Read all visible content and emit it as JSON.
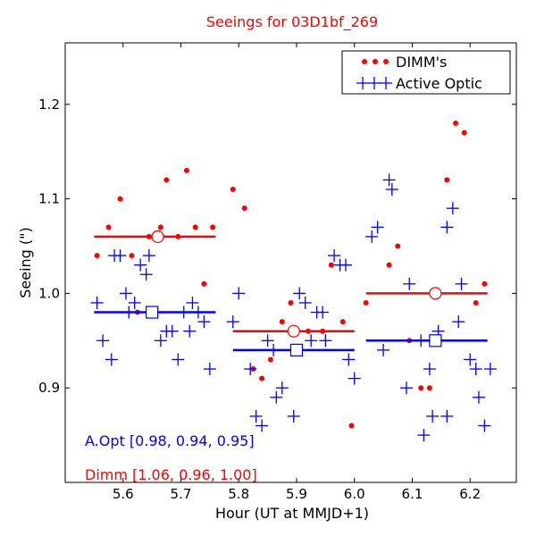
{
  "chart_data": {
    "type": "scatter",
    "title": "Seeings for 03D1bf_269",
    "xlabel": "Hour (UT at MMJD+1)",
    "ylabel": "Seeing (\")",
    "xlim": [
      5.5,
      6.28
    ],
    "ylim": [
      0.8,
      1.265
    ],
    "xticks": [
      5.6,
      5.7,
      5.8,
      5.9,
      6.0,
      6.1,
      6.2
    ],
    "xtick_labels": [
      "5.6",
      "5.7",
      "5.8",
      "5.9",
      "6.0",
      "6.1",
      "6.2"
    ],
    "yticks": [
      0.9,
      1.0,
      1.1,
      1.2
    ],
    "ytick_labels": [
      "0.9",
      "1.0",
      "1.1",
      "1.2"
    ],
    "grid": false,
    "legend_position": "top-right",
    "colors": {
      "dimm": "#ff0000",
      "aopt": "#0000ff"
    },
    "series": [
      {
        "name": "DIMM's",
        "key": "dimm",
        "marker": "dot",
        "points": [
          [
            5.555,
            1.04
          ],
          [
            5.575,
            1.07
          ],
          [
            5.595,
            1.1
          ],
          [
            5.615,
            1.04
          ],
          [
            5.625,
            0.98
          ],
          [
            5.645,
            1.06
          ],
          [
            5.665,
            1.07
          ],
          [
            5.675,
            1.12
          ],
          [
            5.695,
            1.06
          ],
          [
            5.71,
            1.13
          ],
          [
            5.725,
            1.07
          ],
          [
            5.74,
            1.01
          ],
          [
            5.755,
            1.07
          ],
          [
            5.79,
            1.11
          ],
          [
            5.81,
            1.09
          ],
          [
            5.825,
            0.92
          ],
          [
            5.84,
            0.91
          ],
          [
            5.855,
            0.93
          ],
          [
            5.875,
            0.97
          ],
          [
            5.89,
            0.99
          ],
          [
            5.92,
            0.96
          ],
          [
            5.945,
            0.96
          ],
          [
            5.96,
            1.03
          ],
          [
            5.98,
            0.97
          ],
          [
            5.995,
            0.86
          ],
          [
            6.02,
            0.99
          ],
          [
            6.06,
            1.03
          ],
          [
            6.075,
            1.05
          ],
          [
            6.095,
            0.95
          ],
          [
            6.115,
            0.9
          ],
          [
            6.13,
            0.9
          ],
          [
            6.16,
            1.12
          ],
          [
            6.175,
            1.18
          ],
          [
            6.19,
            1.17
          ],
          [
            6.21,
            0.99
          ],
          [
            6.225,
            1.01
          ]
        ]
      },
      {
        "name": "Active Optic",
        "key": "aopt",
        "marker": "plus",
        "points": [
          [
            5.555,
            0.99
          ],
          [
            5.565,
            0.95
          ],
          [
            5.58,
            0.93
          ],
          [
            5.585,
            1.04
          ],
          [
            5.595,
            1.04
          ],
          [
            5.605,
            1.0
          ],
          [
            5.61,
            0.98
          ],
          [
            5.62,
            0.99
          ],
          [
            5.63,
            1.03
          ],
          [
            5.64,
            1.02
          ],
          [
            5.645,
            1.04
          ],
          [
            5.665,
            0.95
          ],
          [
            5.675,
            0.96
          ],
          [
            5.685,
            0.96
          ],
          [
            5.695,
            0.93
          ],
          [
            5.705,
            0.98
          ],
          [
            5.715,
            0.96
          ],
          [
            5.72,
            0.99
          ],
          [
            5.73,
            0.98
          ],
          [
            5.74,
            0.97
          ],
          [
            5.75,
            0.92
          ],
          [
            5.79,
            0.97
          ],
          [
            5.8,
            1.0
          ],
          [
            5.82,
            0.92
          ],
          [
            5.83,
            0.87
          ],
          [
            5.84,
            0.86
          ],
          [
            5.85,
            0.95
          ],
          [
            5.86,
            0.94
          ],
          [
            5.865,
            0.89
          ],
          [
            5.875,
            0.9
          ],
          [
            5.895,
            0.87
          ],
          [
            5.905,
            1.0
          ],
          [
            5.915,
            0.99
          ],
          [
            5.925,
            0.95
          ],
          [
            5.935,
            0.98
          ],
          [
            5.945,
            0.98
          ],
          [
            5.95,
            0.95
          ],
          [
            5.965,
            1.04
          ],
          [
            5.975,
            1.03
          ],
          [
            5.985,
            1.03
          ],
          [
            5.99,
            0.93
          ],
          [
            6.0,
            0.91
          ],
          [
            6.03,
            1.06
          ],
          [
            6.04,
            1.07
          ],
          [
            6.05,
            0.94
          ],
          [
            6.06,
            1.12
          ],
          [
            6.065,
            1.11
          ],
          [
            6.09,
            0.9
          ],
          [
            6.095,
            1.01
          ],
          [
            6.115,
            0.95
          ],
          [
            6.12,
            0.85
          ],
          [
            6.13,
            0.92
          ],
          [
            6.135,
            0.87
          ],
          [
            6.145,
            0.96
          ],
          [
            6.16,
            0.87
          ],
          [
            6.16,
            1.07
          ],
          [
            6.17,
            1.09
          ],
          [
            6.18,
            0.97
          ],
          [
            6.185,
            1.01
          ],
          [
            6.2,
            0.93
          ],
          [
            6.21,
            0.92
          ],
          [
            6.215,
            0.89
          ],
          [
            6.225,
            0.86
          ],
          [
            6.235,
            0.92
          ]
        ]
      }
    ],
    "segment_means": [
      {
        "key": "dimm",
        "x_range": [
          5.55,
          5.76
        ],
        "value": 1.06,
        "marker_x": 5.66,
        "marker": "circle"
      },
      {
        "key": "dimm",
        "x_range": [
          5.79,
          6.0
        ],
        "value": 0.96,
        "marker_x": 5.895,
        "marker": "circle"
      },
      {
        "key": "dimm",
        "x_range": [
          6.02,
          6.23
        ],
        "value": 1.0,
        "marker_x": 6.14,
        "marker": "circle"
      },
      {
        "key": "aopt",
        "x_range": [
          5.55,
          5.76
        ],
        "value": 0.98,
        "marker_x": 5.65,
        "marker": "square"
      },
      {
        "key": "aopt",
        "x_range": [
          5.79,
          6.0
        ],
        "value": 0.94,
        "marker_x": 5.9,
        "marker": "square"
      },
      {
        "key": "aopt",
        "x_range": [
          6.02,
          6.23
        ],
        "value": 0.95,
        "marker_x": 6.14,
        "marker": "square"
      }
    ],
    "legend": [
      {
        "key": "dimm",
        "label": "DIMM's"
      },
      {
        "key": "aopt",
        "label": "Active Optic"
      }
    ],
    "annotations": {
      "aopt": "A.Opt [0.98, 0.94, 0.95]",
      "dimm": "Dimm [1.06, 0.96, 1.00]"
    }
  }
}
